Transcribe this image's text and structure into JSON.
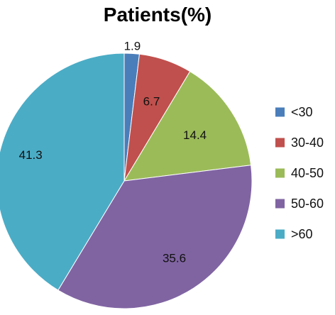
{
  "chart_data": {
    "type": "pie",
    "title": "Patients(%)",
    "categories": [
      "<30",
      "30-40",
      "40-50",
      "50-60",
      ">60"
    ],
    "values": [
      1.9,
      6.7,
      14.4,
      35.6,
      41.3
    ],
    "data_labels": [
      "1.9",
      "6.7",
      "14.4",
      "35.6",
      "41.3"
    ],
    "colors": [
      "#4a7ebb",
      "#c0504d",
      "#9bbb59",
      "#8064a2",
      "#4bacc6"
    ],
    "legend": {
      "placement": "right",
      "entries": [
        "<30",
        "30-40",
        "40-50",
        "50-60",
        ">60"
      ]
    },
    "start_angle": "12 o'clock",
    "direction": "clockwise"
  }
}
